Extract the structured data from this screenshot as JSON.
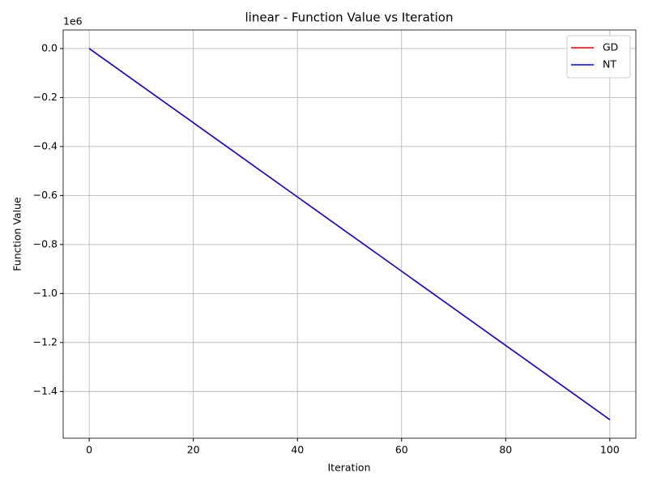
{
  "chart_data": {
    "type": "line",
    "title": "linear - Function Value vs Iteration",
    "x_label": "Iteration",
    "y_label": "Function Value",
    "y_offset_label": "1e6",
    "x": [
      0,
      10,
      20,
      30,
      40,
      50,
      60,
      70,
      80,
      90,
      100
    ],
    "series": [
      {
        "name": "GD",
        "color": "#ff0000",
        "values": [
          0,
          -151500,
          -303000,
          -454500,
          -606000,
          -757500,
          -909000,
          -1060500,
          -1212000,
          -1363500,
          -1515000
        ]
      },
      {
        "name": "NT",
        "color": "#0000ff",
        "values": [
          0,
          -151500,
          -303000,
          -454500,
          -606000,
          -757500,
          -909000,
          -1060500,
          -1212000,
          -1363500,
          -1515000
        ]
      }
    ],
    "xlim": [
      -5,
      105
    ],
    "ylim": [
      -1590750,
      75750
    ],
    "xticks": [
      0,
      20,
      40,
      60,
      80,
      100
    ],
    "yticks": [
      {
        "value": 0,
        "label": "0.0"
      },
      {
        "value": -200000,
        "label": "−0.2"
      },
      {
        "value": -400000,
        "label": "−0.4"
      },
      {
        "value": -600000,
        "label": "−0.6"
      },
      {
        "value": -800000,
        "label": "−0.8"
      },
      {
        "value": -1000000,
        "label": "−1.0"
      },
      {
        "value": -1200000,
        "label": "−1.2"
      },
      {
        "value": -1400000,
        "label": "−1.4"
      }
    ],
    "grid": true,
    "legend": "upper right"
  }
}
